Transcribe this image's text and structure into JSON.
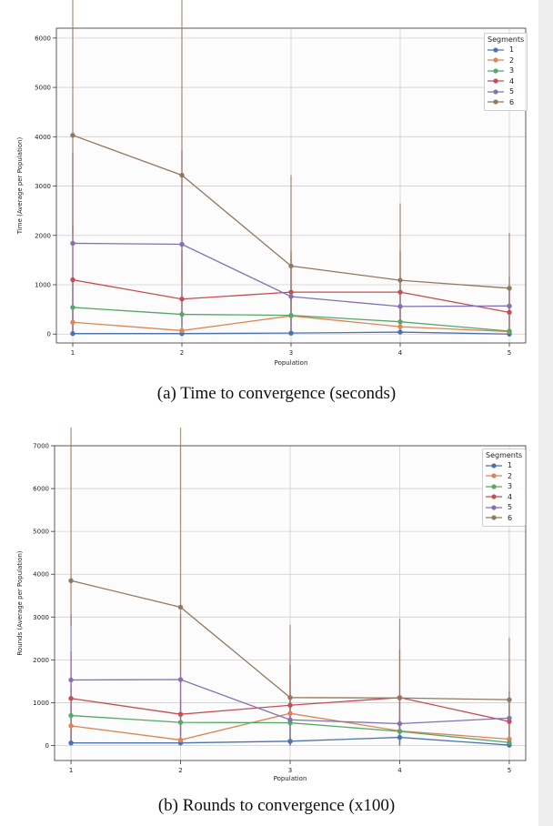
{
  "chart_data": [
    {
      "type": "line",
      "caption": "(a) Time to convergence (seconds)",
      "xlabel": "Population",
      "ylabel": "Time (Average per Population)",
      "x": [
        1,
        2,
        3,
        4,
        5
      ],
      "xlim": [
        0.85,
        5.15
      ],
      "ylim": [
        -180,
        6200
      ],
      "yticks": [
        0,
        1000,
        2000,
        3000,
        4000,
        5000,
        6000
      ],
      "grid": true,
      "legend": {
        "title": "Segments",
        "placement": "top-right"
      },
      "series": [
        {
          "name": "1",
          "color": "#4c72b0",
          "values": [
            10,
            10,
            20,
            40,
            0
          ],
          "err_low": [
            10,
            10,
            20,
            40,
            0
          ],
          "err_high": [
            10,
            10,
            20,
            40,
            0
          ]
        },
        {
          "name": "2",
          "color": "#dd8452",
          "values": [
            240,
            70,
            370,
            150,
            50
          ],
          "err_low": [
            240,
            70,
            370,
            150,
            50
          ],
          "err_high": [
            240,
            70,
            370,
            150,
            50
          ]
        },
        {
          "name": "3",
          "color": "#55a868",
          "values": [
            540,
            400,
            380,
            250,
            60
          ],
          "err_low": [
            540,
            400,
            380,
            250,
            60
          ],
          "err_high": [
            540,
            400,
            380,
            250,
            60
          ]
        },
        {
          "name": "4",
          "color": "#c44e52",
          "values": [
            1100,
            710,
            850,
            850,
            440
          ],
          "err_low": [
            1100,
            550,
            850,
            850,
            440
          ],
          "err_high": [
            1100,
            980,
            850,
            850,
            440
          ]
        },
        {
          "name": "5",
          "color": "#8172b3",
          "values": [
            1840,
            1820,
            760,
            560,
            570
          ],
          "err_low": [
            1840,
            1680,
            740,
            540,
            560
          ],
          "err_high": [
            1840,
            1900,
            780,
            580,
            580
          ]
        },
        {
          "name": "6",
          "color": "#937860",
          "values": [
            4030,
            3220,
            1380,
            1090,
            930
          ],
          "err_low": [
            2000,
            2150,
            900,
            750,
            900
          ],
          "err_high": [
            5950,
            4290,
            1840,
            1560,
            1120
          ]
        }
      ]
    },
    {
      "type": "line",
      "caption": "(b) Rounds to convergence (x100)",
      "xlabel": "Population",
      "ylabel": "Rounds (Average per Population)",
      "x": [
        1,
        2,
        3,
        4,
        5
      ],
      "xlim": [
        0.85,
        5.15
      ],
      "ylim": [
        -350,
        7000
      ],
      "yticks": [
        0,
        1000,
        2000,
        3000,
        4000,
        5000,
        6000,
        7000
      ],
      "grid": true,
      "legend": {
        "title": "Segments",
        "placement": "top-right"
      },
      "series": [
        {
          "name": "1",
          "color": "#4c72b0",
          "values": [
            60,
            60,
            100,
            190,
            10
          ],
          "err_low": [
            60,
            60,
            100,
            120,
            10
          ],
          "err_high": [
            60,
            60,
            100,
            260,
            10
          ]
        },
        {
          "name": "2",
          "color": "#dd8452",
          "values": [
            460,
            130,
            750,
            340,
            150
          ],
          "err_low": [
            460,
            130,
            750,
            340,
            150
          ],
          "err_high": [
            460,
            130,
            750,
            340,
            150
          ]
        },
        {
          "name": "3",
          "color": "#55a868",
          "values": [
            700,
            540,
            530,
            330,
            70
          ],
          "err_low": [
            700,
            540,
            530,
            330,
            70
          ],
          "err_high": [
            700,
            540,
            530,
            330,
            70
          ]
        },
        {
          "name": "4",
          "color": "#c44e52",
          "values": [
            1100,
            730,
            940,
            1120,
            560
          ],
          "err_low": [
            1100,
            500,
            940,
            1120,
            560
          ],
          "err_high": [
            1100,
            1000,
            940,
            1120,
            560
          ]
        },
        {
          "name": "5",
          "color": "#8172b3",
          "values": [
            1530,
            1540,
            600,
            510,
            640
          ],
          "err_low": [
            1530,
            1540,
            600,
            510,
            640
          ],
          "err_high": [
            1530,
            1540,
            600,
            510,
            640
          ]
        },
        {
          "name": "6",
          "color": "#937860",
          "values": [
            3850,
            3230,
            1120,
            1110,
            1070
          ],
          "err_low": [
            1050,
            1500,
            650,
            400,
            800
          ],
          "err_high": [
            6690,
            5070,
            1700,
            1850,
            1450
          ]
        }
      ]
    }
  ]
}
